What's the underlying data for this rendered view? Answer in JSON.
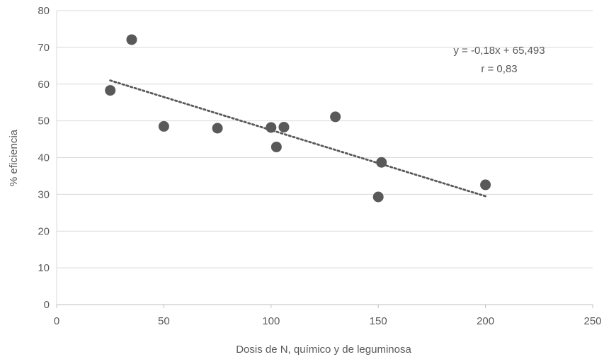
{
  "chart_data": {
    "type": "scatter",
    "title": "",
    "xlabel": "Dosis de N, químico y de leguminosa",
    "ylabel": "% eficiencia",
    "xlim": [
      0,
      250
    ],
    "ylim": [
      0,
      80
    ],
    "xticks": [
      0,
      50,
      100,
      150,
      200,
      250
    ],
    "yticks": [
      0,
      10,
      20,
      30,
      40,
      50,
      60,
      70,
      80
    ],
    "grid": "horizontal",
    "legend": "none",
    "point_color": "#595959",
    "trend_color": "#595959",
    "points": [
      {
        "x": 25,
        "y": 58.3
      },
      {
        "x": 35,
        "y": 72.1
      },
      {
        "x": 50,
        "y": 48.5
      },
      {
        "x": 75,
        "y": 48.0
      },
      {
        "x": 100,
        "y": 48.2
      },
      {
        "x": 102.5,
        "y": 42.9
      },
      {
        "x": 106,
        "y": 48.3
      },
      {
        "x": 130,
        "y": 51.1
      },
      {
        "x": 150,
        "y": 29.3
      },
      {
        "x": 151.5,
        "y": 38.7
      },
      {
        "x": 200,
        "y": 32.6
      }
    ],
    "trendline": {
      "x_start": 25,
      "x_end": 200,
      "slope": -0.18,
      "intercept": 65.493,
      "equation_label": "y = -0,18x + 65,493",
      "r_label": "r = 0,83"
    }
  }
}
